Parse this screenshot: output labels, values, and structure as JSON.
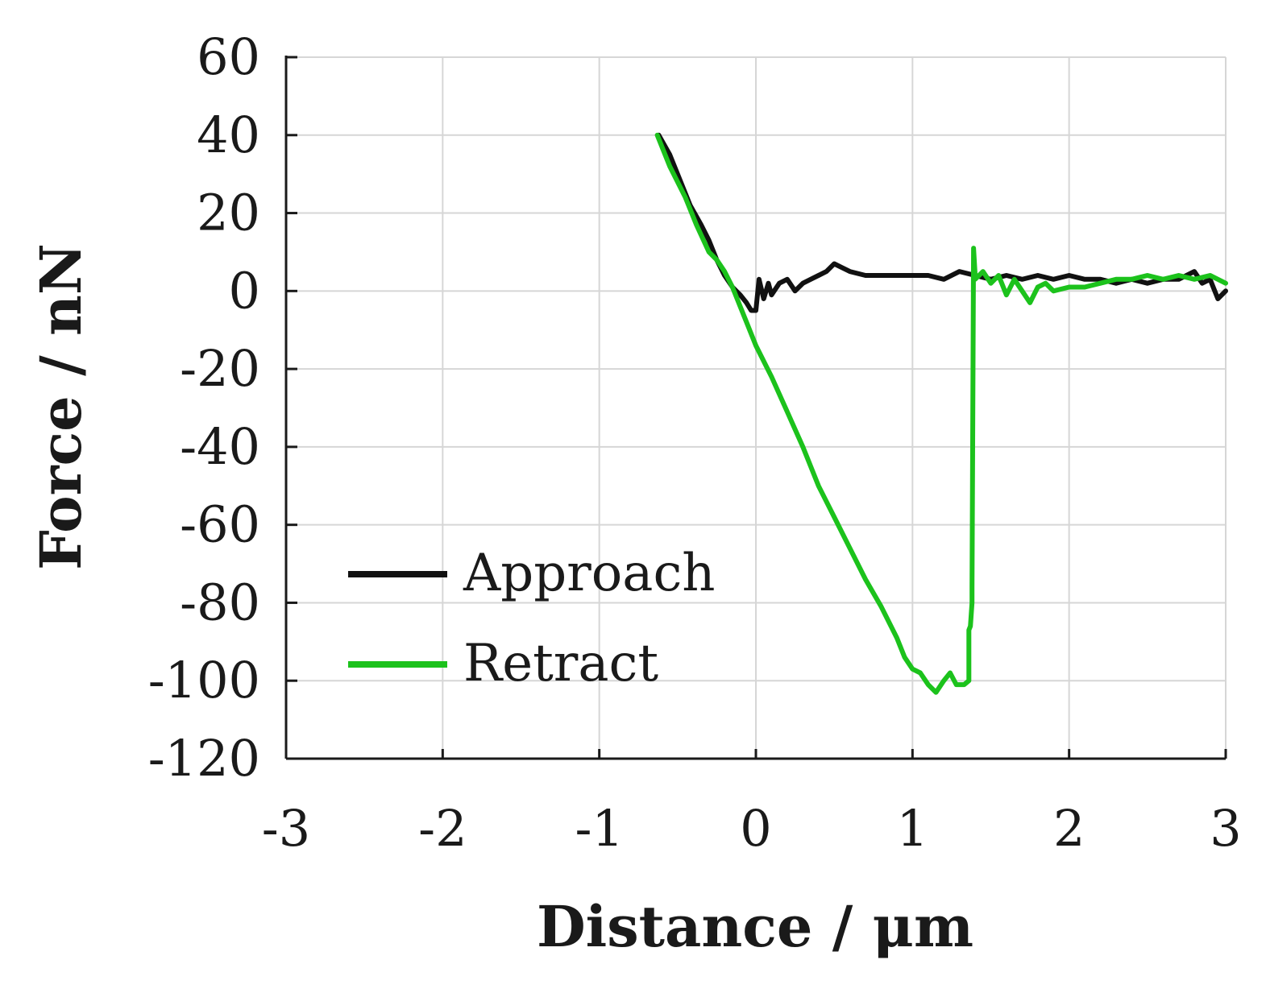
{
  "chart_data": {
    "type": "line",
    "title": "",
    "xlabel": "Distance / μm",
    "ylabel": "Force / nN",
    "xlim": [
      -3,
      3
    ],
    "ylim": [
      -120,
      60
    ],
    "xticks": [
      -3,
      -2,
      -1,
      0,
      1,
      2,
      3
    ],
    "yticks": [
      60,
      40,
      20,
      0,
      -20,
      -40,
      -60,
      -80,
      -100,
      -120
    ],
    "grid": true,
    "legend_position": "lower-left",
    "series": [
      {
        "name": "Approach",
        "color": "#111111",
        "x": [
          -0.62,
          -0.55,
          -0.48,
          -0.42,
          -0.35,
          -0.3,
          -0.25,
          -0.2,
          -0.15,
          -0.1,
          -0.06,
          -0.03,
          0.0,
          0.02,
          0.05,
          0.08,
          0.1,
          0.15,
          0.2,
          0.25,
          0.3,
          0.35,
          0.4,
          0.45,
          0.5,
          0.55,
          0.6,
          0.7,
          0.8,
          0.9,
          1.0,
          1.1,
          1.2,
          1.3,
          1.4,
          1.5,
          1.6,
          1.7,
          1.8,
          1.9,
          2.0,
          2.1,
          2.2,
          2.3,
          2.4,
          2.5,
          2.6,
          2.7,
          2.8,
          2.85,
          2.9,
          2.95,
          3.0
        ],
        "y": [
          40,
          35,
          28,
          22,
          17,
          13,
          8,
          4,
          1,
          -1,
          -3,
          -5,
          -5,
          3,
          -2,
          2,
          -1,
          2,
          3,
          0,
          2,
          3,
          4,
          5,
          7,
          6,
          5,
          4,
          4,
          4,
          4,
          4,
          3,
          5,
          4,
          3,
          4,
          3,
          4,
          3,
          4,
          3,
          3,
          2,
          3,
          2,
          3,
          3,
          5,
          2,
          3,
          -2,
          0
        ]
      },
      {
        "name": "Retract",
        "color": "#1cc21c",
        "x": [
          -0.63,
          -0.55,
          -0.45,
          -0.38,
          -0.3,
          -0.25,
          -0.2,
          -0.15,
          -0.1,
          -0.05,
          0.0,
          0.1,
          0.2,
          0.3,
          0.4,
          0.5,
          0.6,
          0.7,
          0.8,
          0.9,
          0.95,
          1.0,
          1.05,
          1.1,
          1.15,
          1.2,
          1.24,
          1.28,
          1.3,
          1.33,
          1.36,
          1.36,
          1.37,
          1.38,
          1.38,
          1.39,
          1.4,
          1.4,
          1.45,
          1.5,
          1.55,
          1.6,
          1.65,
          1.7,
          1.75,
          1.8,
          1.85,
          1.9,
          2.0,
          2.1,
          2.2,
          2.3,
          2.4,
          2.5,
          2.6,
          2.7,
          2.8,
          2.9,
          2.95,
          3.0
        ],
        "y": [
          40,
          32,
          24,
          17,
          10,
          8,
          5,
          1,
          -4,
          -9,
          -14,
          -22,
          -31,
          -40,
          -50,
          -58,
          -66,
          -74,
          -81,
          -89,
          -94,
          -97,
          -98,
          -101,
          -103,
          -100,
          -98,
          -101,
          -101,
          -101,
          -100,
          -87,
          -86,
          -80,
          -76,
          11,
          4,
          3,
          5,
          2,
          4,
          -1,
          3,
          0,
          -3,
          1,
          2,
          0,
          1,
          1,
          2,
          3,
          3,
          4,
          3,
          4,
          3,
          4,
          3,
          2
        ]
      }
    ]
  }
}
